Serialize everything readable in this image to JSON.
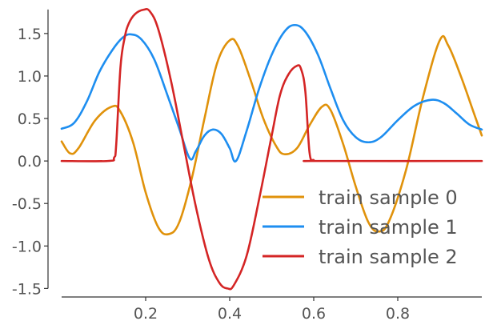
{
  "chart_data": {
    "type": "line",
    "title": "",
    "xlabel": "",
    "ylabel": "",
    "xlim": [
      0.0,
      1.0
    ],
    "ylim": [
      -1.6,
      1.8
    ],
    "x_ticks": [
      0.2,
      0.4,
      0.6,
      0.8
    ],
    "x_tick_labels": [
      "0.2",
      "0.4",
      "0.6",
      "0.8"
    ],
    "y_ticks": [
      -1.5,
      -1.0,
      -0.5,
      0.0,
      0.5,
      1.0,
      1.5
    ],
    "y_tick_labels": [
      "-1.5",
      "-1.0",
      "-0.5",
      "0.0",
      "0.5",
      "1.0",
      "1.5"
    ],
    "grid": false,
    "legend_position": "lower-right",
    "series": [
      {
        "name": "train sample 0",
        "color": "#E0920B",
        "points": [
          [
            0.0,
            0.23
          ],
          [
            0.02,
            0.09
          ],
          [
            0.04,
            0.15
          ],
          [
            0.08,
            0.48
          ],
          [
            0.12,
            0.64
          ],
          [
            0.14,
            0.58
          ],
          [
            0.17,
            0.22
          ],
          [
            0.2,
            -0.37
          ],
          [
            0.23,
            -0.78
          ],
          [
            0.255,
            -0.86
          ],
          [
            0.28,
            -0.72
          ],
          [
            0.31,
            -0.2
          ],
          [
            0.34,
            0.5
          ],
          [
            0.37,
            1.15
          ],
          [
            0.4,
            1.42
          ],
          [
            0.42,
            1.35
          ],
          [
            0.45,
            0.95
          ],
          [
            0.48,
            0.5
          ],
          [
            0.51,
            0.18
          ],
          [
            0.53,
            0.08
          ],
          [
            0.56,
            0.15
          ],
          [
            0.59,
            0.42
          ],
          [
            0.62,
            0.64
          ],
          [
            0.64,
            0.6
          ],
          [
            0.67,
            0.2
          ],
          [
            0.7,
            -0.3
          ],
          [
            0.73,
            -0.72
          ],
          [
            0.755,
            -0.83
          ],
          [
            0.78,
            -0.7
          ],
          [
            0.82,
            -0.1
          ],
          [
            0.86,
            0.75
          ],
          [
            0.9,
            1.42
          ],
          [
            0.92,
            1.36
          ],
          [
            0.95,
            1.0
          ],
          [
            0.98,
            0.58
          ],
          [
            1.0,
            0.3
          ]
        ]
      },
      {
        "name": "train sample 1",
        "color": "#1E8EF0",
        "points": [
          [
            0.0,
            0.38
          ],
          [
            0.03,
            0.45
          ],
          [
            0.06,
            0.7
          ],
          [
            0.09,
            1.05
          ],
          [
            0.12,
            1.3
          ],
          [
            0.145,
            1.45
          ],
          [
            0.165,
            1.49
          ],
          [
            0.19,
            1.43
          ],
          [
            0.22,
            1.2
          ],
          [
            0.25,
            0.8
          ],
          [
            0.28,
            0.38
          ],
          [
            0.305,
            0.03
          ],
          [
            0.32,
            0.12
          ],
          [
            0.34,
            0.3
          ],
          [
            0.36,
            0.37
          ],
          [
            0.38,
            0.32
          ],
          [
            0.4,
            0.15
          ],
          [
            0.415,
            0.0
          ],
          [
            0.44,
            0.35
          ],
          [
            0.47,
            0.85
          ],
          [
            0.5,
            1.25
          ],
          [
            0.53,
            1.52
          ],
          [
            0.555,
            1.6
          ],
          [
            0.58,
            1.52
          ],
          [
            0.61,
            1.25
          ],
          [
            0.64,
            0.85
          ],
          [
            0.67,
            0.48
          ],
          [
            0.7,
            0.28
          ],
          [
            0.73,
            0.22
          ],
          [
            0.76,
            0.28
          ],
          [
            0.8,
            0.48
          ],
          [
            0.84,
            0.65
          ],
          [
            0.88,
            0.72
          ],
          [
            0.91,
            0.68
          ],
          [
            0.94,
            0.56
          ],
          [
            0.97,
            0.43
          ],
          [
            1.0,
            0.37
          ]
        ]
      },
      {
        "name": "train sample 2",
        "color": "#D42525",
        "points": [
          [
            0.0,
            0.0
          ],
          [
            0.11,
            0.0
          ],
          [
            0.125,
            0.04
          ],
          [
            0.13,
            0.2
          ],
          [
            0.14,
            1.1
          ],
          [
            0.15,
            1.45
          ],
          [
            0.16,
            1.62
          ],
          [
            0.175,
            1.73
          ],
          [
            0.195,
            1.78
          ],
          [
            0.21,
            1.76
          ],
          [
            0.23,
            1.55
          ],
          [
            0.26,
            0.95
          ],
          [
            0.29,
            0.2
          ],
          [
            0.32,
            -0.55
          ],
          [
            0.35,
            -1.15
          ],
          [
            0.375,
            -1.43
          ],
          [
            0.395,
            -1.5
          ],
          [
            0.41,
            -1.46
          ],
          [
            0.44,
            -1.12
          ],
          [
            0.47,
            -0.45
          ],
          [
            0.5,
            0.3
          ],
          [
            0.52,
            0.78
          ],
          [
            0.54,
            1.02
          ],
          [
            0.56,
            1.12
          ],
          [
            0.57,
            1.08
          ],
          [
            0.58,
            0.82
          ],
          [
            0.59,
            0.1
          ],
          [
            0.6,
            0.01
          ],
          [
            0.61,
            0.0
          ],
          [
            1.0,
            0.0
          ]
        ]
      }
    ]
  }
}
